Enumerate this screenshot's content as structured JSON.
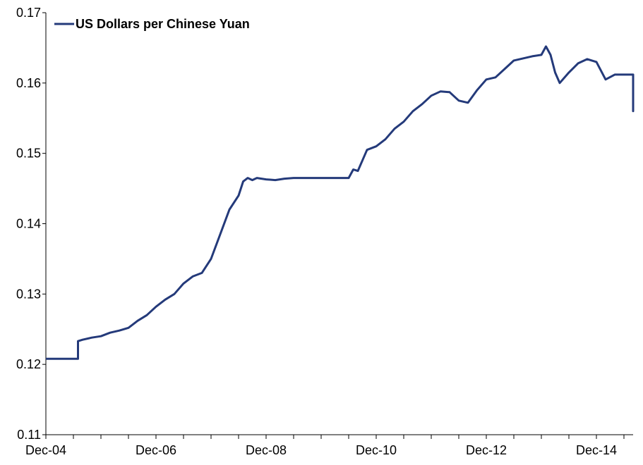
{
  "chart_data": {
    "type": "line",
    "title": "",
    "xlabel": "",
    "ylabel": "",
    "ylim": [
      0.11,
      0.17
    ],
    "xlim": [
      "2004-12",
      "2015-08"
    ],
    "grid": false,
    "legend": {
      "position": "top-left",
      "entries": [
        "US Dollars per Chinese Yuan"
      ]
    },
    "x_tick_labels": [
      "Dec-04",
      "Dec-06",
      "Dec-08",
      "Dec-10",
      "Dec-12",
      "Dec-14"
    ],
    "y_tick_labels": [
      "0.11",
      "0.12",
      "0.13",
      "0.14",
      "0.15",
      "0.16",
      "0.17"
    ],
    "colors": {
      "series": "#243a7a",
      "axis": "#000000"
    },
    "series": [
      {
        "name": "US Dollars per Chinese Yuan",
        "x": [
          "2004-12",
          "2005-03",
          "2005-07",
          "2005-07",
          "2005-08",
          "2005-10",
          "2005-12",
          "2006-02",
          "2006-04",
          "2006-06",
          "2006-08",
          "2006-10",
          "2006-12",
          "2007-02",
          "2007-04",
          "2007-06",
          "2007-08",
          "2007-10",
          "2007-12",
          "2008-02",
          "2008-04",
          "2008-06",
          "2008-07",
          "2008-08",
          "2008-09",
          "2008-10",
          "2008-12",
          "2009-02",
          "2009-04",
          "2009-06",
          "2009-09",
          "2009-12",
          "2010-03",
          "2010-06",
          "2010-07",
          "2010-08",
          "2010-09",
          "2010-10",
          "2010-12",
          "2011-02",
          "2011-04",
          "2011-06",
          "2011-08",
          "2011-10",
          "2011-12",
          "2012-02",
          "2012-04",
          "2012-06",
          "2012-08",
          "2012-10",
          "2012-12",
          "2013-02",
          "2013-04",
          "2013-06",
          "2013-08",
          "2013-10",
          "2013-12",
          "2014-01",
          "2014-02",
          "2014-03",
          "2014-04",
          "2014-06",
          "2014-08",
          "2014-10",
          "2014-12",
          "2015-02",
          "2015-04",
          "2015-06",
          "2015-07",
          "2015-08",
          "2015-08",
          "2015-08"
        ],
        "values": [
          0.1208,
          0.1208,
          0.1208,
          0.1233,
          0.1235,
          0.1238,
          0.124,
          0.1245,
          0.1248,
          0.1252,
          0.1262,
          0.127,
          0.1282,
          0.1292,
          0.13,
          0.1315,
          0.1325,
          0.133,
          0.135,
          0.1385,
          0.142,
          0.144,
          0.146,
          0.1465,
          0.1462,
          0.1465,
          0.1463,
          0.1462,
          0.1464,
          0.1465,
          0.1465,
          0.1465,
          0.1465,
          0.1465,
          0.1477,
          0.1475,
          0.149,
          0.1505,
          0.151,
          0.152,
          0.1535,
          0.1545,
          0.156,
          0.157,
          0.1582,
          0.1588,
          0.1587,
          0.1575,
          0.1572,
          0.159,
          0.1605,
          0.1608,
          0.162,
          0.1632,
          0.1635,
          0.1638,
          0.164,
          0.1652,
          0.164,
          0.1615,
          0.16,
          0.1615,
          0.1628,
          0.1634,
          0.163,
          0.1605,
          0.1612,
          0.1612,
          0.1612,
          0.1612,
          0.156,
          0.1578
        ]
      }
    ]
  }
}
